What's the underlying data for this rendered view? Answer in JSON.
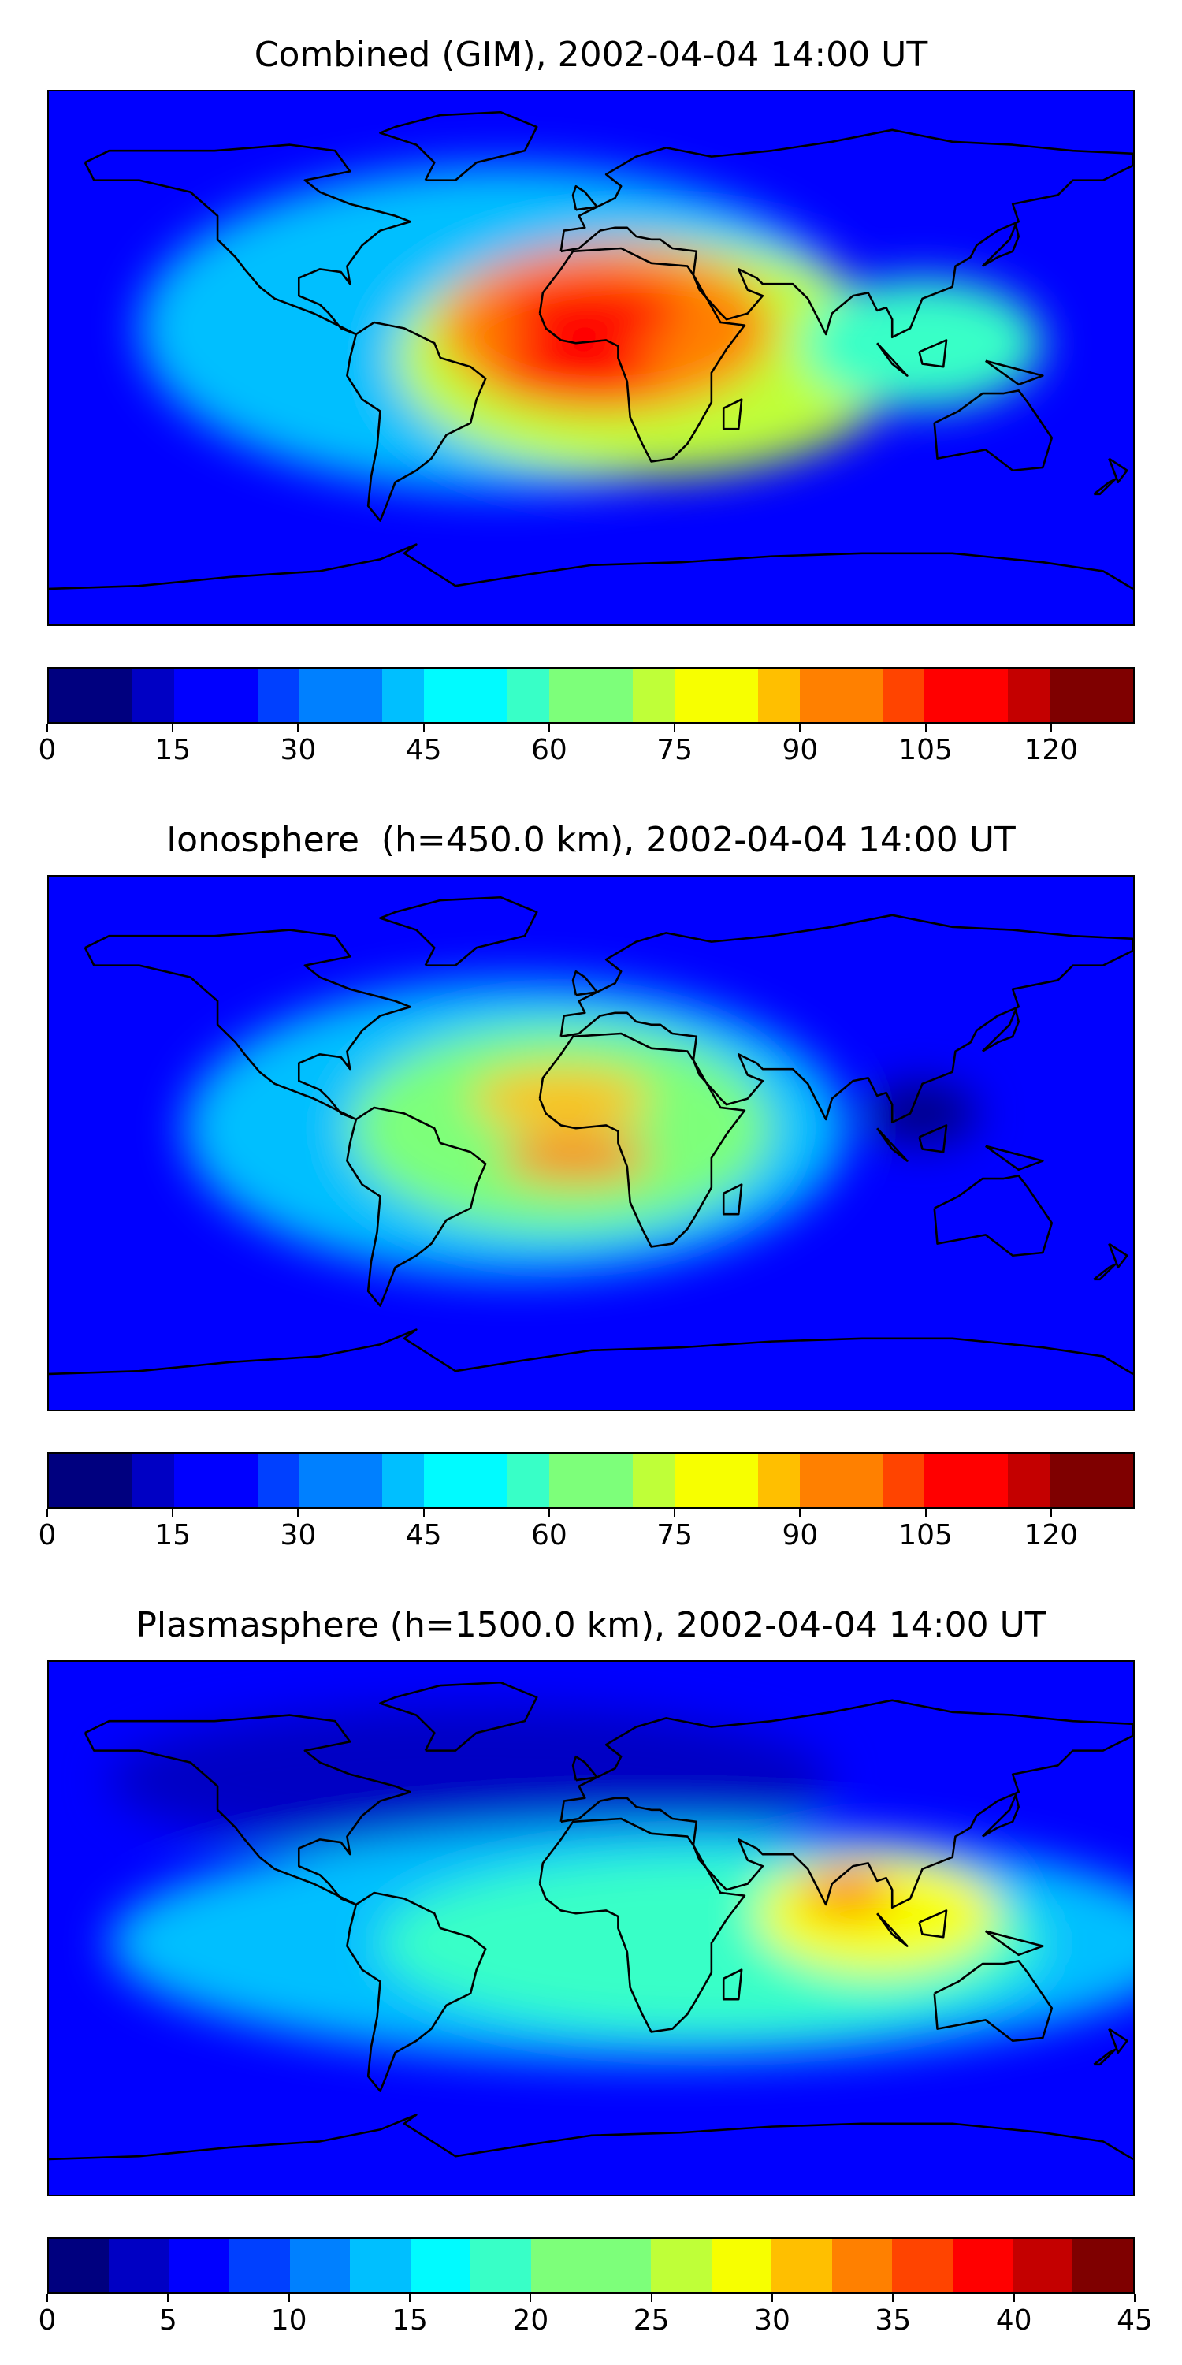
{
  "panels": [
    {
      "id": "combined",
      "title": "Combined (GIM), 2002-04-04 14:00 UT",
      "colorbar": {
        "min": 0,
        "max": 130,
        "levels": 26,
        "ticks": [
          "0",
          "15",
          "30",
          "45",
          "60",
          "75",
          "90",
          "105",
          "120"
        ],
        "tick_values": [
          0,
          15,
          30,
          45,
          60,
          75,
          90,
          105,
          120
        ]
      },
      "background_level": 20,
      "blobs": [
        {
          "lon": -30,
          "lat": 10,
          "rx_deg": 120,
          "ry_deg": 55,
          "level": 45
        },
        {
          "lon": 20,
          "lat": 0,
          "rx_deg": 85,
          "ry_deg": 40,
          "level": 70
        },
        {
          "lon": 5,
          "lat": 10,
          "rx_deg": 55,
          "ry_deg": 28,
          "level": 95
        },
        {
          "lon": 0,
          "lat": 15,
          "rx_deg": 30,
          "ry_deg": 12,
          "level": 110
        },
        {
          "lon": -5,
          "lat": -5,
          "rx_deg": 28,
          "ry_deg": 10,
          "level": 112
        },
        {
          "lon": 110,
          "lat": 5,
          "rx_deg": 40,
          "ry_deg": 22,
          "level": 55
        }
      ]
    },
    {
      "id": "ionosphere",
      "title": "Ionosphere  (h=450.0 km), 2002-04-04 14:00 UT",
      "colorbar": {
        "min": 0,
        "max": 130,
        "levels": 26,
        "ticks": [
          "0",
          "15",
          "30",
          "45",
          "60",
          "75",
          "90",
          "105",
          "120"
        ],
        "tick_values": [
          0,
          15,
          30,
          45,
          60,
          75,
          90,
          105,
          120
        ]
      },
      "background_level": 18,
      "blobs": [
        {
          "lon": -25,
          "lat": 5,
          "rx_deg": 110,
          "ry_deg": 50,
          "level": 40
        },
        {
          "lon": -10,
          "lat": 5,
          "rx_deg": 70,
          "ry_deg": 35,
          "level": 65
        },
        {
          "lon": -10,
          "lat": 15,
          "rx_deg": 30,
          "ry_deg": 10,
          "level": 90
        },
        {
          "lon": -5,
          "lat": -5,
          "rx_deg": 25,
          "ry_deg": 8,
          "level": 92
        },
        {
          "lon": 110,
          "lat": 10,
          "rx_deg": 18,
          "ry_deg": 10,
          "level": 5
        }
      ]
    },
    {
      "id": "plasmasphere",
      "title": "Plasmasphere (h=1500.0 km), 2002-04-04 14:00 UT",
      "colorbar": {
        "min": 0,
        "max": 45,
        "levels": 18,
        "ticks": [
          "0",
          "5",
          "10",
          "15",
          "20",
          "25",
          "30",
          "35",
          "40",
          "45"
        ],
        "tick_values": [
          0,
          5,
          10,
          15,
          20,
          25,
          30,
          35,
          40,
          45
        ]
      },
      "background_level": 6,
      "blobs": [
        {
          "lon": -40,
          "lat": 50,
          "rx_deg": 120,
          "ry_deg": 25,
          "level": 3
        },
        {
          "lon": 20,
          "lat": -5,
          "rx_deg": 180,
          "ry_deg": 40,
          "level": 15
        },
        {
          "lon": 40,
          "lat": -5,
          "rx_deg": 110,
          "ry_deg": 30,
          "level": 20
        },
        {
          "lon": 95,
          "lat": 5,
          "rx_deg": 40,
          "ry_deg": 20,
          "level": 27
        },
        {
          "lon": 85,
          "lat": 12,
          "rx_deg": 15,
          "ry_deg": 8,
          "level": 32
        }
      ]
    }
  ],
  "colormap": [
    "#00007f",
    "#0000c4",
    "#0000ff",
    "#0040ff",
    "#0080ff",
    "#00bfff",
    "#00fbff",
    "#38ffc7",
    "#7dff7a",
    "#bfff38",
    "#f7ff00",
    "#ffbf00",
    "#ff8000",
    "#ff4400",
    "#ff0000",
    "#c40000",
    "#7f0000"
  ],
  "coastline_color": "#000000"
}
